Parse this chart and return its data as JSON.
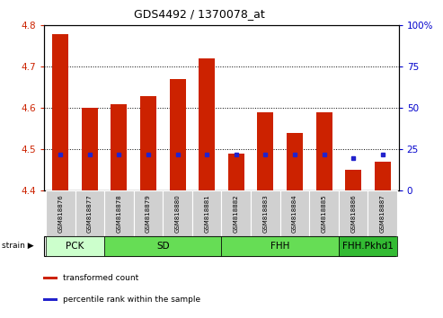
{
  "title": "GDS4492 / 1370078_at",
  "samples": [
    "GSM818876",
    "GSM818877",
    "GSM818878",
    "GSM818879",
    "GSM818880",
    "GSM818881",
    "GSM818882",
    "GSM818883",
    "GSM818884",
    "GSM818885",
    "GSM818886",
    "GSM818887"
  ],
  "transformed_count": [
    4.78,
    4.6,
    4.61,
    4.63,
    4.67,
    4.72,
    4.49,
    4.59,
    4.54,
    4.59,
    4.45,
    4.47
  ],
  "percentile_rank": [
    22,
    22,
    22,
    22,
    22,
    22,
    22,
    22,
    22,
    22,
    20,
    22
  ],
  "bar_bottom": 4.4,
  "ylim_left": [
    4.4,
    4.8
  ],
  "ylim_right": [
    0,
    100
  ],
  "yticks_left": [
    4.4,
    4.5,
    4.6,
    4.7,
    4.8
  ],
  "yticks_right": [
    0,
    25,
    50,
    75,
    100
  ],
  "bar_color": "#cc2200",
  "percentile_color": "#2222cc",
  "groups": [
    {
      "label": "PCK",
      "start": 0,
      "end": 2,
      "color": "#ccffcc"
    },
    {
      "label": "SD",
      "start": 2,
      "end": 6,
      "color": "#66dd55"
    },
    {
      "label": "FHH",
      "start": 6,
      "end": 10,
      "color": "#66dd55"
    },
    {
      "label": "FHH.Pkhd1",
      "start": 10,
      "end": 12,
      "color": "#33bb33"
    }
  ],
  "strain_label": "strain",
  "legend_items": [
    {
      "label": "transformed count",
      "color": "#cc2200"
    },
    {
      "label": "percentile rank within the sample",
      "color": "#2222cc"
    }
  ],
  "tick_bg_color": "#d0d0d0",
  "right_axis_color": "#0000cc",
  "left_axis_color": "#cc2200",
  "grid_yticks": [
    4.5,
    4.6,
    4.7
  ]
}
